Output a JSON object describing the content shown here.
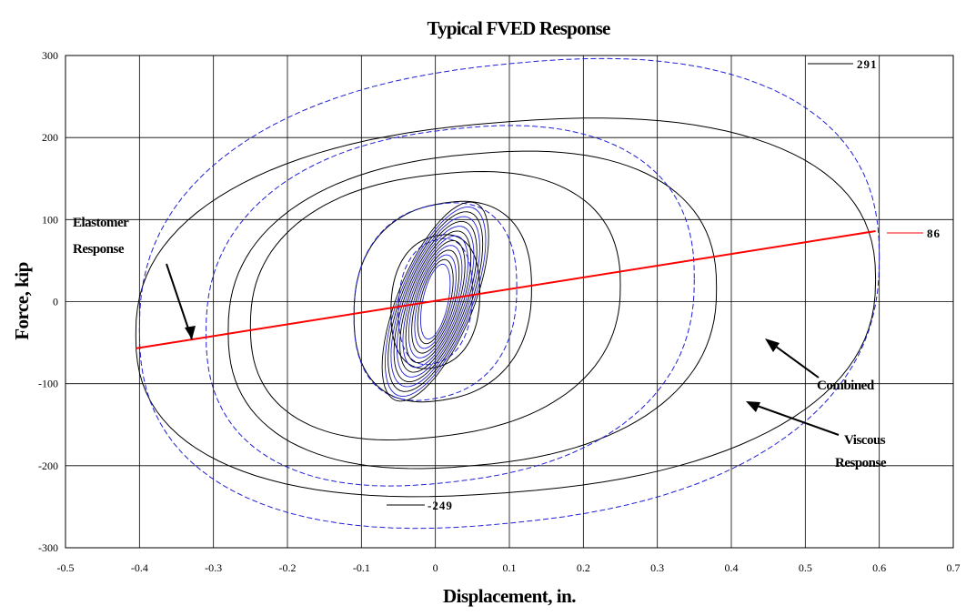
{
  "chart_data": {
    "type": "line",
    "title": "Typical FVED Response",
    "xlabel": "Displacement, in.",
    "ylabel": "Force, kip",
    "xlim": [
      -0.5,
      0.7
    ],
    "ylim": [
      -300,
      300
    ],
    "x_ticks": [
      "-0.5",
      "-0.4",
      "-0.3",
      "-0.2",
      "-0.1",
      "0",
      "0.1",
      "0.2",
      "0.3",
      "0.4",
      "0.5",
      "0.6",
      "0.7"
    ],
    "y_ticks": [
      "300",
      "200",
      "100",
      "0",
      "-100",
      "-200",
      "-300"
    ],
    "grid": true,
    "series": [
      {
        "color": "#000000",
        "style": "solid",
        "loops": [
          {
            "cx": 0.095,
            "cy": -7,
            "rx": 0.5,
            "ry": 226,
            "tilt": 0.17
          },
          {
            "cx": 0.05,
            "cy": -10,
            "rx": 0.33,
            "ry": 190,
            "tilt": 0.2
          },
          {
            "cx": 0.0,
            "cy": -5,
            "rx": 0.25,
            "ry": 160,
            "tilt": 0.25
          },
          {
            "cx": 0.01,
            "cy": 0,
            "rx": 0.12,
            "ry": 120,
            "tilt": 0.35
          },
          {
            "cx": 0.0,
            "cy": 0,
            "rx": 0.06,
            "ry": 80,
            "tilt": 0.5
          }
        ]
      },
      {
        "color": "#1f1fd6",
        "style": "dashed",
        "loops": [
          {
            "cx": 0.1,
            "cy": 10,
            "rx": 0.5,
            "ry": 280,
            "tilt": 0.22
          },
          {
            "cx": 0.02,
            "cy": -5,
            "rx": 0.33,
            "ry": 215,
            "tilt": 0.25
          },
          {
            "cx": 0.0,
            "cy": 0,
            "rx": 0.11,
            "ry": 118,
            "tilt": 0.4
          },
          {
            "cx": 0.0,
            "cy": 0,
            "rx": 0.05,
            "ry": 75,
            "tilt": 0.6
          }
        ]
      },
      {
        "color": "#ff0000",
        "style": "solid",
        "x": [
          -0.405,
          0.595
        ],
        "y": [
          -57,
          86
        ]
      }
    ],
    "annotations": [
      {
        "text_lines": [
          "Elastomer",
          "Response"
        ],
        "arrow_to": [
          -0.335,
          -45
        ]
      },
      {
        "text_lines": [
          "Combined"
        ],
        "arrow_to": [
          0.455,
          -48
        ]
      },
      {
        "text_lines": [
          "Viscous",
          "Response"
        ],
        "arrow_to": [
          0.42,
          -130
        ]
      },
      {
        "value": "291",
        "point": [
          0.5,
          291
        ]
      },
      {
        "value": "86",
        "point": [
          0.6,
          86
        ]
      },
      {
        "value": "-249",
        "point": [
          -0.07,
          -249
        ]
      }
    ]
  }
}
